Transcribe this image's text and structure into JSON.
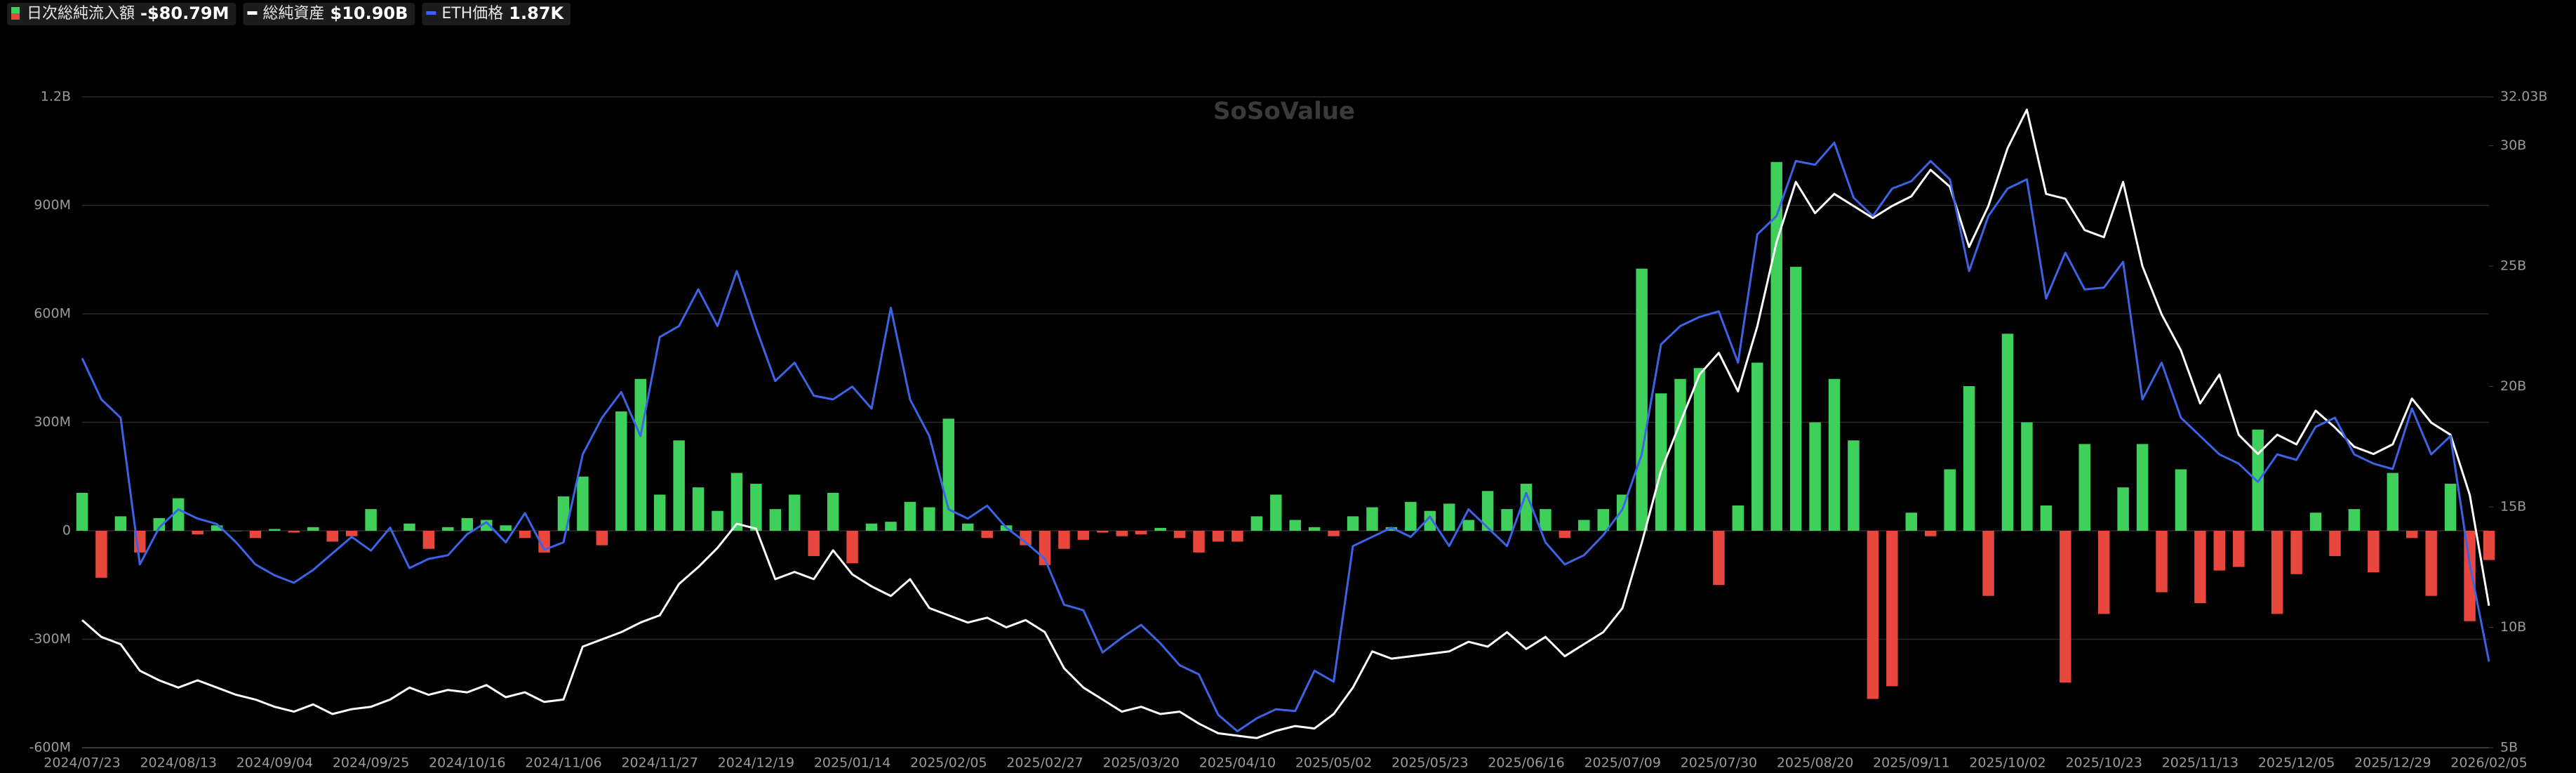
{
  "chart_data": {
    "type": "combo",
    "watermark": "SoSoValue",
    "categories": [
      "2024/07/23",
      null,
      null,
      null,
      null,
      "2024/08/13",
      null,
      null,
      null,
      null,
      "2024/09/04",
      null,
      null,
      null,
      null,
      "2024/09/25",
      null,
      null,
      null,
      null,
      "2024/10/16",
      null,
      null,
      null,
      null,
      "2024/11/06",
      null,
      null,
      null,
      null,
      "2024/11/27",
      null,
      null,
      null,
      null,
      "2024/12/19",
      null,
      null,
      null,
      null,
      "2025/01/14",
      null,
      null,
      null,
      null,
      "2025/02/05",
      null,
      null,
      null,
      null,
      "2025/02/27",
      null,
      null,
      null,
      null,
      "2025/03/20",
      null,
      null,
      null,
      null,
      "2025/04/10",
      null,
      null,
      null,
      null,
      "2025/05/02",
      null,
      null,
      null,
      null,
      "2025/05/23",
      null,
      null,
      null,
      null,
      "2025/06/16",
      null,
      null,
      null,
      null,
      "2025/07/09",
      null,
      null,
      null,
      null,
      "2025/07/30",
      null,
      null,
      null,
      null,
      "2025/08/20",
      null,
      null,
      null,
      null,
      "2025/09/11",
      null,
      null,
      null,
      null,
      "2025/10/02",
      null,
      null,
      null,
      null,
      "2025/10/23",
      null,
      null,
      null,
      null,
      "2025/11/13",
      null,
      null,
      null,
      null,
      "2025/12/05",
      null,
      null,
      null,
      null,
      "2025/12/29",
      null,
      null,
      null,
      null,
      "2026/02/05"
    ],
    "ylim": [
      -600,
      1200
    ],
    "yticks": [
      {
        "value": -600,
        "label": "-600M"
      },
      {
        "value": -300,
        "label": "-300M"
      },
      0,
      {
        "value": 300,
        "label": "300M"
      },
      {
        "value": 600,
        "label": "600M"
      },
      {
        "value": 900,
        "label": "900M"
      },
      {
        "value": 1200,
        "label": "1.2B"
      }
    ],
    "y2lim": [
      5,
      32.03
    ],
    "y2ticks": [
      {
        "value": 5,
        "label": "5B"
      },
      {
        "value": 10,
        "label": "10B"
      },
      {
        "value": 15,
        "label": "15B"
      },
      {
        "value": 20,
        "label": "20B"
      },
      {
        "value": 25,
        "label": "25B"
      },
      {
        "value": 30,
        "label": "30B"
      },
      {
        "value": 32.03,
        "label": "32.03B"
      }
    ],
    "y3lim": [
      1400,
      4950
    ],
    "grid": true,
    "series": [
      {
        "name": "日次総純流入額",
        "type": "bar",
        "axis": "y",
        "colors": [
          "#3fcf5b",
          "#e8473d"
        ],
        "latest_label": "-$80.79M",
        "values": [
          105,
          -130,
          40,
          -60,
          35,
          90,
          -10,
          15,
          0,
          -20,
          5,
          -5,
          10,
          -30,
          -15,
          60,
          0,
          20,
          -50,
          10,
          35,
          30,
          15,
          -20,
          -60,
          95,
          150,
          -40,
          330,
          420,
          100,
          250,
          120,
          55,
          160,
          130,
          60,
          100,
          -70,
          105,
          -90,
          20,
          25,
          80,
          65,
          310,
          20,
          -20,
          15,
          -40,
          -95,
          -50,
          -25,
          -5,
          -15,
          -10,
          8,
          -20,
          -60,
          -30,
          -30,
          40,
          100,
          30,
          10,
          -15,
          40,
          65,
          10,
          80,
          55,
          75,
          30,
          110,
          60,
          130,
          60,
          -20,
          30,
          60,
          100,
          725,
          380,
          420,
          450,
          -150,
          70,
          465,
          1020,
          730,
          300,
          420,
          250,
          -465,
          -430,
          50,
          -15,
          170,
          400,
          -180,
          545,
          300,
          70,
          -420,
          240,
          -230,
          120,
          240,
          -170,
          170,
          -200,
          -110,
          -100,
          280,
          -230,
          -120,
          50,
          -70,
          60,
          -115,
          160,
          -20,
          -180,
          130,
          -250,
          -80.79
        ]
      },
      {
        "name": "総純資産",
        "type": "line",
        "axis": "y2",
        "color": "#ffffff",
        "latest_label": "$10.90B",
        "values": [
          10.3,
          9.6,
          9.3,
          8.2,
          7.8,
          7.5,
          7.8,
          7.5,
          7.2,
          7.0,
          6.7,
          6.5,
          6.8,
          6.4,
          6.6,
          6.7,
          7.0,
          7.5,
          7.2,
          7.4,
          7.3,
          7.6,
          7.1,
          7.3,
          6.9,
          7.0,
          9.2,
          9.5,
          9.8,
          10.2,
          10.5,
          11.8,
          12.5,
          13.3,
          14.3,
          14.1,
          12.0,
          12.3,
          12.0,
          13.2,
          12.2,
          11.7,
          11.3,
          12.0,
          10.8,
          10.5,
          10.2,
          10.4,
          10.0,
          10.3,
          9.8,
          8.3,
          7.5,
          7.0,
          6.5,
          6.7,
          6.4,
          6.5,
          6.0,
          5.6,
          5.5,
          5.4,
          5.7,
          5.9,
          5.8,
          6.4,
          7.5,
          9.0,
          8.7,
          8.8,
          8.9,
          9.0,
          9.4,
          9.2,
          9.8,
          9.1,
          9.6,
          8.8,
          9.3,
          9.8,
          10.8,
          13.5,
          16.5,
          18.5,
          20.5,
          21.4,
          19.8,
          22.5,
          26.0,
          28.5,
          27.2,
          28.0,
          27.5,
          27.0,
          27.5,
          27.9,
          29.0,
          28.3,
          25.8,
          27.5,
          29.9,
          31.5,
          28.0,
          27.8,
          26.5,
          26.2,
          28.5,
          25.0,
          23.0,
          21.5,
          19.3,
          20.5,
          18.0,
          17.2,
          18.0,
          17.6,
          19.0,
          18.3,
          17.5,
          17.2,
          17.6,
          19.5,
          18.5,
          18.0,
          15.5,
          10.9
        ]
      },
      {
        "name": "ETH価格",
        "type": "line",
        "axis": "y3",
        "color": "#3d63e6",
        "latest_label": "1.87K",
        "values": [
          3525,
          3300,
          3200,
          2400,
          2600,
          2700,
          2650,
          2620,
          2520,
          2400,
          2340,
          2300,
          2370,
          2460,
          2550,
          2475,
          2600,
          2380,
          2430,
          2450,
          2565,
          2630,
          2520,
          2680,
          2480,
          2520,
          3000,
          3200,
          3340,
          3100,
          3640,
          3700,
          3900,
          3700,
          4000,
          3690,
          3400,
          3500,
          3320,
          3300,
          3370,
          3250,
          3800,
          3300,
          3100,
          2700,
          2650,
          2720,
          2600,
          2520,
          2430,
          2180,
          2150,
          1920,
          2000,
          2070,
          1970,
          1850,
          1800,
          1580,
          1490,
          1560,
          1610,
          1600,
          1820,
          1760,
          2500,
          2550,
          2600,
          2550,
          2660,
          2500,
          2700,
          2600,
          2500,
          2790,
          2520,
          2400,
          2450,
          2560,
          2700,
          3000,
          3600,
          3700,
          3750,
          3780,
          3500,
          4200,
          4300,
          4600,
          4580,
          4700,
          4400,
          4300,
          4450,
          4490,
          4600,
          4500,
          4000,
          4300,
          4450,
          4500,
          3850,
          4100,
          3900,
          3910,
          4050,
          3300,
          3500,
          3200,
          3100,
          3000,
          2950,
          2850,
          3000,
          2970,
          3150,
          3200,
          3000,
          2950,
          2920,
          3250,
          3000,
          3100,
          2400,
          1870
        ]
      }
    ]
  }
}
